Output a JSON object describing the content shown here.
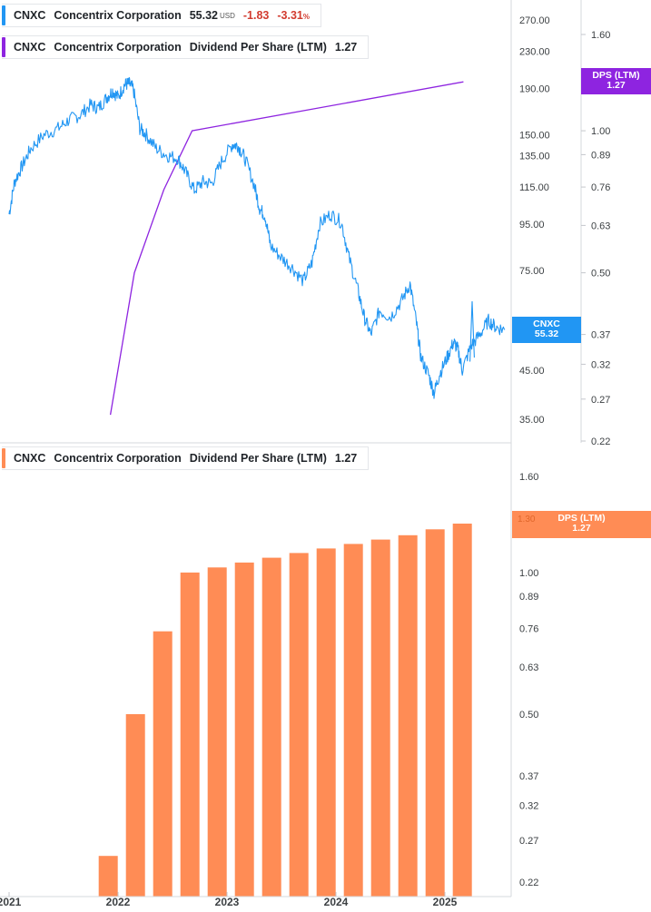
{
  "legend_price": {
    "ticker": "CNXC",
    "company": "Concentrix Corporation",
    "price": "55.32",
    "currency": "USD",
    "change": "-1.83",
    "change_pct": "-3.31",
    "pct_sign": "%",
    "color": "#2196f3"
  },
  "legend_dps_top": {
    "ticker": "CNXC",
    "company": "Concentrix Corporation",
    "metric": "Dividend Per Share (LTM)",
    "value": "1.27",
    "color": "#8e24e0"
  },
  "legend_dps_bottom": {
    "ticker": "CNXC",
    "company": "Concentrix Corporation",
    "metric": "Dividend Per Share (LTM)",
    "value": "1.27",
    "color": "#ff8c55"
  },
  "flags": {
    "price": {
      "line1": "CNXC",
      "line2": "55.32",
      "color": "#2196f3"
    },
    "dps_top": {
      "line1": "DPS (LTM)",
      "line2": "1.27",
      "color": "#8e24e0"
    },
    "dps_bottom": {
      "line1": "DPS (LTM)",
      "line2": "1.27",
      "color": "#ff8c55",
      "hidden_tick": "1.30"
    }
  },
  "chart_data": [
    {
      "type": "line",
      "panel": "top",
      "title": "CNXC Concentrix Corporation",
      "series_name": "Price (USD)",
      "scale": "log",
      "ylim": [
        33,
        300
      ],
      "y_ticks": [
        "270.00",
        "230.00",
        "190.00",
        "150.00",
        "135.00",
        "115.00",
        "95.00",
        "75.00",
        "45.00",
        "35.00"
      ],
      "points": [
        [
          2021.0,
          100
        ],
        [
          2021.05,
          118
        ],
        [
          2021.12,
          128
        ],
        [
          2021.2,
          140
        ],
        [
          2021.32,
          150
        ],
        [
          2021.45,
          155
        ],
        [
          2021.55,
          162
        ],
        [
          2021.65,
          166
        ],
        [
          2021.75,
          175
        ],
        [
          2021.82,
          172
        ],
        [
          2021.9,
          182
        ],
        [
          2021.95,
          188
        ],
        [
          2022.0,
          182
        ],
        [
          2022.06,
          194
        ],
        [
          2022.1,
          195
        ],
        [
          2022.14,
          190
        ],
        [
          2022.2,
          155
        ],
        [
          2022.26,
          150
        ],
        [
          2022.35,
          140
        ],
        [
          2022.45,
          135
        ],
        [
          2022.55,
          133
        ],
        [
          2022.62,
          124
        ],
        [
          2022.7,
          113
        ],
        [
          2022.78,
          118
        ],
        [
          2022.86,
          117
        ],
        [
          2022.95,
          131
        ],
        [
          2023.05,
          143
        ],
        [
          2023.1,
          142
        ],
        [
          2023.16,
          134
        ],
        [
          2023.25,
          116
        ],
        [
          2023.3,
          103
        ],
        [
          2023.35,
          99
        ],
        [
          2023.4,
          85
        ],
        [
          2023.5,
          80
        ],
        [
          2023.6,
          76
        ],
        [
          2023.7,
          71
        ],
        [
          2023.78,
          78
        ],
        [
          2023.85,
          95
        ],
        [
          2023.95,
          100
        ],
        [
          2024.05,
          96
        ],
        [
          2024.12,
          80
        ],
        [
          2024.2,
          68
        ],
        [
          2024.26,
          59
        ],
        [
          2024.32,
          54
        ],
        [
          2024.4,
          61
        ],
        [
          2024.5,
          59
        ],
        [
          2024.6,
          64
        ],
        [
          2024.68,
          70
        ],
        [
          2024.74,
          57
        ],
        [
          2024.78,
          48
        ],
        [
          2024.85,
          44
        ],
        [
          2024.9,
          40
        ],
        [
          2024.95,
          44
        ],
        [
          2025.02,
          48
        ],
        [
          2025.08,
          52
        ],
        [
          2025.12,
          50
        ],
        [
          2025.16,
          45
        ],
        [
          2025.24,
          51
        ],
        [
          2025.32,
          54
        ],
        [
          2025.4,
          58
        ],
        [
          2025.47,
          56
        ],
        [
          2025.55,
          55.32
        ]
      ],
      "spike": [
        [
          2025.23,
          47
        ],
        [
          2025.25,
          64
        ],
        [
          2025.27,
          48
        ]
      ]
    },
    {
      "type": "line",
      "panel": "top",
      "series_name": "Dividend Per Share (LTM)",
      "scale": "log",
      "ylim": [
        0.21,
        2.0
      ],
      "y_ticks": [
        "1.60",
        "1.00",
        "0.89",
        "0.76",
        "0.63",
        "0.50",
        "0.37",
        "0.32",
        "0.27",
        "0.22"
      ],
      "points": [
        [
          2021.93,
          0.25
        ],
        [
          2022.15,
          0.5
        ],
        [
          2022.42,
          0.75
        ],
        [
          2022.68,
          1.0
        ],
        [
          2025.17,
          1.27
        ]
      ]
    },
    {
      "type": "bar",
      "panel": "bottom",
      "title": "CNXC Concentrix Corporation Dividend Per Share (LTM)",
      "scale": "log",
      "ylim": [
        0.22,
        2.0
      ],
      "y_ticks": [
        "1.60",
        "1.00",
        "0.89",
        "0.76",
        "0.63",
        "0.50",
        "0.37",
        "0.32",
        "0.27",
        "0.22"
      ],
      "x_positions": [
        2021.91,
        2022.16,
        2022.41,
        2022.66,
        2022.91,
        2023.16,
        2023.41,
        2023.66,
        2023.91,
        2024.16,
        2024.41,
        2024.66,
        2024.91,
        2025.16
      ],
      "values": [
        0.25,
        0.5,
        0.75,
        1.0,
        1.025,
        1.05,
        1.075,
        1.1,
        1.125,
        1.15,
        1.175,
        1.2,
        1.235,
        1.27
      ]
    }
  ],
  "x_axis": {
    "labels": [
      {
        "t": 2021.0,
        "label": "2021"
      },
      {
        "t": 2022.0,
        "label": "2022"
      },
      {
        "t": 2023.0,
        "label": "2023"
      },
      {
        "t": 2024.0,
        "label": "2024"
      },
      {
        "t": 2025.0,
        "label": "2025"
      }
    ]
  }
}
